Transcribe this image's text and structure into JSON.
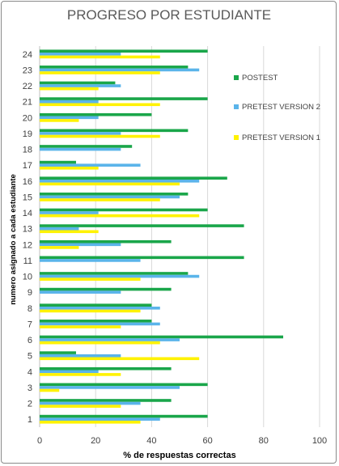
{
  "chart_data": {
    "type": "bar",
    "orientation": "horizontal",
    "title": "PROGRESO POR ESTUDIANTE",
    "xlabel": "% de respuestas correctas",
    "ylabel": "numero asignado a cada estudiante",
    "xlim": [
      0,
      100
    ],
    "xticks": [
      0,
      20,
      40,
      60,
      80,
      100
    ],
    "grid": true,
    "legend_position": "right",
    "categories": [
      "1",
      "2",
      "3",
      "4",
      "5",
      "6",
      "7",
      "8",
      "9",
      "10",
      "11",
      "12",
      "13",
      "14",
      "15",
      "16",
      "17",
      "18",
      "19",
      "20",
      "21",
      "22",
      "23",
      "24"
    ],
    "series": [
      {
        "name": "POSTEST",
        "color": "#1aa64a",
        "values": [
          60,
          47,
          60,
          47,
          13,
          87,
          40,
          40,
          47,
          53,
          73,
          47,
          73,
          60,
          53,
          67,
          13,
          33,
          53,
          40,
          60,
          27,
          53,
          60
        ]
      },
      {
        "name": "PRETEST VERSION 2",
        "color": "#5ab4ea",
        "values": [
          43,
          36,
          50,
          21,
          29,
          50,
          43,
          43,
          29,
          57,
          36,
          29,
          14,
          21,
          50,
          57,
          36,
          29,
          29,
          21,
          21,
          29,
          57,
          29
        ]
      },
      {
        "name": "PRETEST VERSION 1",
        "color": "#fff200",
        "values": [
          36,
          29,
          7,
          29,
          57,
          43,
          29,
          36,
          0,
          36,
          0,
          14,
          21,
          57,
          43,
          50,
          21,
          0,
          43,
          14,
          43,
          21,
          43,
          43
        ]
      }
    ]
  }
}
